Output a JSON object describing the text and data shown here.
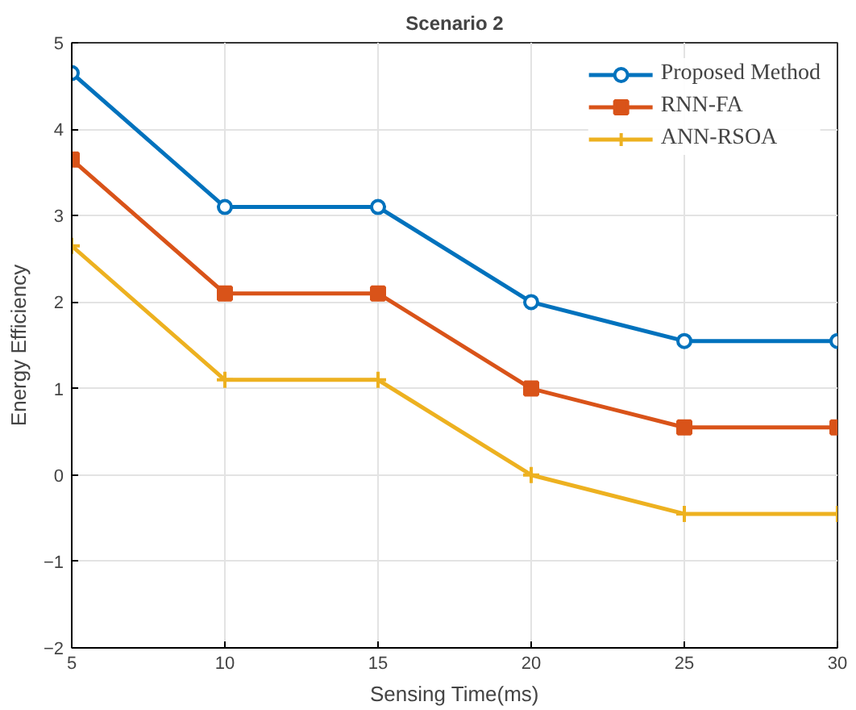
{
  "chart_data": {
    "type": "line",
    "title": "Scenario 2",
    "xlabel": "Sensing Time(ms)",
    "ylabel": "Energy Efficiency",
    "x": [
      5,
      10,
      15,
      20,
      25,
      30
    ],
    "series": [
      {
        "name": "Proposed Method",
        "color": "#0072bd",
        "marker": "circle",
        "values": [
          4.65,
          3.1,
          3.1,
          2.0,
          1.55,
          1.55
        ]
      },
      {
        "name": "RNN-FA",
        "color": "#d95319",
        "marker": "square",
        "values": [
          3.65,
          2.1,
          2.1,
          1.0,
          0.55,
          0.55
        ]
      },
      {
        "name": "ANN-RSOA",
        "color": "#edb120",
        "marker": "cross",
        "values": [
          2.65,
          1.1,
          1.1,
          0.0,
          -0.45,
          -0.45
        ]
      }
    ],
    "xlim": [
      5,
      30
    ],
    "xticks": [
      5,
      10,
      15,
      20,
      25,
      30
    ],
    "ylim": [
      -2,
      5
    ],
    "yticks": [
      -2,
      -1,
      0,
      1,
      2,
      3,
      4,
      5
    ],
    "grid": true,
    "legend": "top right",
    "line_style": "solid"
  }
}
